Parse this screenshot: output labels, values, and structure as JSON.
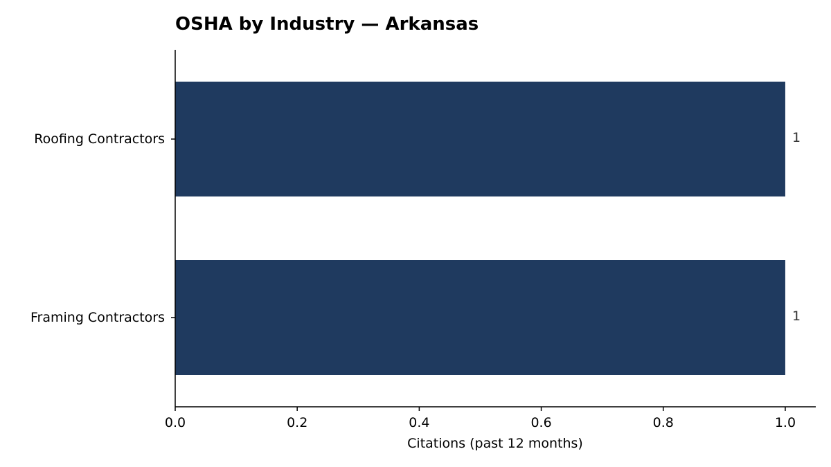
{
  "chart_data": {
    "type": "bar",
    "orientation": "horizontal",
    "title": "OSHA by Industry — Arkansas",
    "xlabel": "Citations (past 12 months)",
    "ylabel": "",
    "categories": [
      "Roofing Contractors",
      "Framing Contractors"
    ],
    "values": [
      1,
      1
    ],
    "data_labels": [
      "1",
      "1"
    ],
    "xlim": [
      0,
      1.05
    ],
    "x_ticks": [
      0.0,
      0.2,
      0.4,
      0.6,
      0.8,
      1.0
    ],
    "x_tick_labels": [
      "0.0",
      "0.2",
      "0.4",
      "0.6",
      "0.8",
      "1.0"
    ],
    "grid": false,
    "legend": "none",
    "colors": {
      "bar": "#1f3a5f",
      "axis": "#000000",
      "data_label": "#333333"
    }
  }
}
